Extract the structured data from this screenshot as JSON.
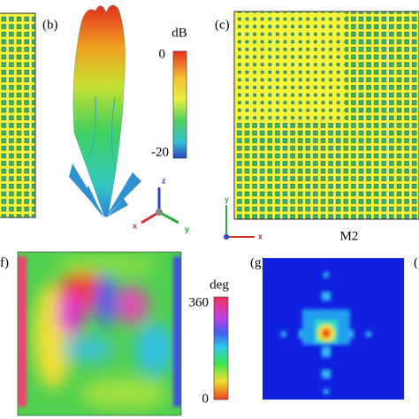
{
  "panels": [
    {
      "label": "(b)",
      "colorbar": {
        "unit": "dB",
        "top": "0",
        "bottom": "-20"
      },
      "axes": [
        "z",
        "x",
        "y"
      ]
    },
    {
      "label": "(c)",
      "caption": "M2",
      "axes": [
        "y",
        "x"
      ]
    },
    {
      "label": "f)",
      "colorbar": {
        "unit": "deg",
        "top": "360",
        "bottom": "0"
      }
    },
    {
      "label": "(g)"
    },
    {
      "label": "("
    }
  ]
}
